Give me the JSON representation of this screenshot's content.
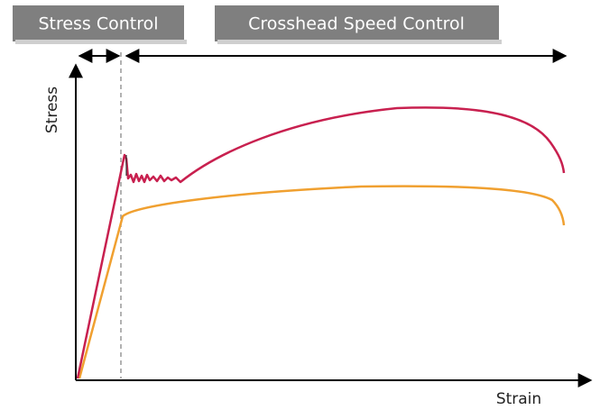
{
  "header": {
    "stress_control": "Stress Control",
    "crosshead_speed_control": "Crosshead Speed Control"
  },
  "axes": {
    "y_label": "Stress",
    "x_label": "Strain"
  }
}
